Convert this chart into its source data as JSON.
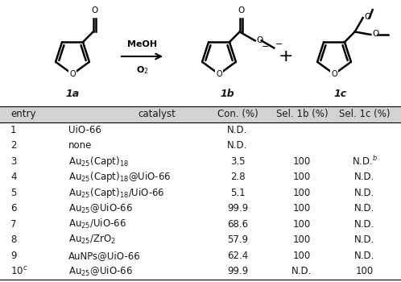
{
  "header": [
    "entry",
    "catalyst",
    "Con. (%)",
    "Sel. 1b (%)",
    "Sel. 1c (%)"
  ],
  "rows": [
    [
      "1",
      "UiO-66",
      "N.D.",
      "",
      ""
    ],
    [
      "2",
      "none",
      "N.D.",
      "",
      ""
    ],
    [
      "3",
      "Au$_{25}$(Capt)$_{18}$",
      "3.5",
      "100",
      "N.D.$^{b}$"
    ],
    [
      "4",
      "Au$_{25}$(Capt)$_{18}$@UiO-66",
      "2.8",
      "100",
      "N.D."
    ],
    [
      "5",
      "Au$_{25}$(Capt)$_{18}$/UiO-66",
      "5.1",
      "100",
      "N.D."
    ],
    [
      "6",
      "Au$_{25}$@UiO-66",
      "99.9",
      "100",
      "N.D."
    ],
    [
      "7",
      "Au$_{25}$/UiO-66",
      "68.6",
      "100",
      "N.D."
    ],
    [
      "8",
      "Au$_{25}$/ZrO$_{2}$",
      "57.9",
      "100",
      "N.D."
    ],
    [
      "9",
      "AuNPs@UiO-66",
      "62.4",
      "100",
      "N.D."
    ],
    [
      "10$^{c}$",
      "Au$_{25}$@UiO-66",
      "99.9",
      "N.D.",
      "100"
    ]
  ],
  "header_bg": "#d3d3d3",
  "bg_color": "#ffffff",
  "text_color": "#1a1a1a",
  "blue_color": "#4169aa",
  "font_size": 8.5,
  "header_font_size": 8.5,
  "fig_width": 4.98,
  "fig_height": 3.5
}
